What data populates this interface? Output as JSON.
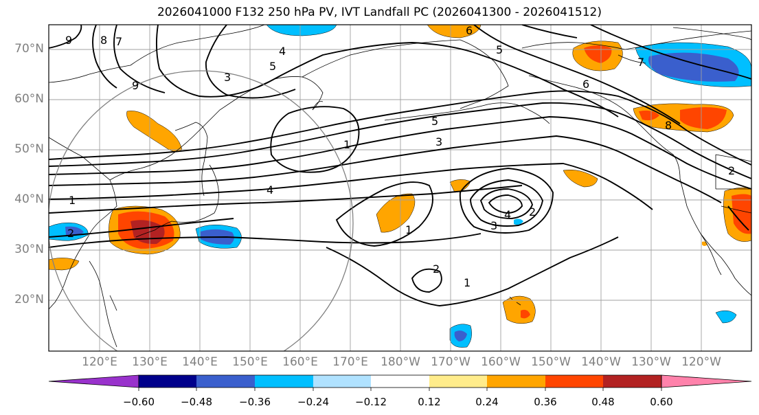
{
  "title": "2026041000 F132 250 hPa PV, IVT Landfall PC (2026041300 - 2026041512)",
  "latitude_labels": [
    "70°N",
    "60°N",
    "50°N",
    "40°N",
    "30°N",
    "20°N"
  ],
  "longitude_labels": [
    "120°E",
    "130°E",
    "140°E",
    "150°E",
    "160°E",
    "170°E",
    "180°W",
    "170°W",
    "160°W",
    "150°W",
    "140°W",
    "130°W",
    "120°W"
  ],
  "colorbar": {
    "labels": [
      "−0.60",
      "−0.48",
      "−0.36",
      "−0.24",
      "−0.12",
      "0.12",
      "0.24",
      "0.36",
      "0.48",
      "0.60"
    ],
    "colors": [
      "#9932cc",
      "#00008b",
      "#3a5fcd",
      "#00bfff",
      "#b0e2ff",
      "#ffffff",
      "#ffec8b",
      "#ffa500",
      "#ff4500",
      "#b22222",
      "#ff82ab"
    ]
  },
  "contour_labels": [
    "1",
    "2",
    "3",
    "4",
    "5",
    "6",
    "7",
    "8",
    "9"
  ]
}
